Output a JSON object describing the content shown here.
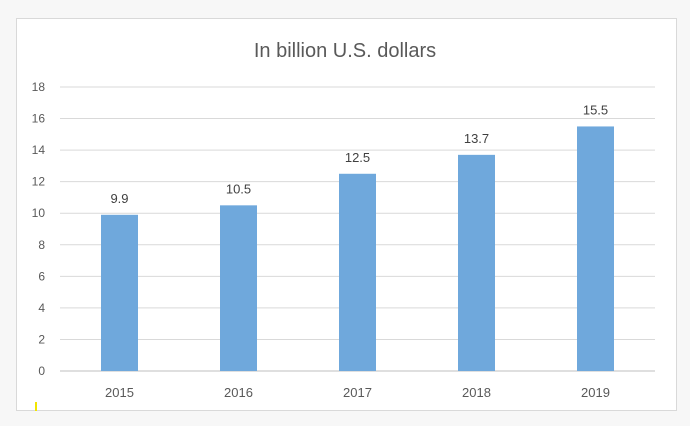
{
  "chart_data": {
    "type": "bar",
    "title": "In billion U.S. dollars",
    "categories": [
      "2015",
      "2016",
      "2017",
      "2018",
      "2019"
    ],
    "values": [
      9.9,
      10.5,
      12.5,
      13.7,
      15.5
    ],
    "value_labels": [
      "9.9",
      "10.5",
      "12.5",
      "13.7",
      "15.5"
    ],
    "ylim": [
      0,
      18
    ],
    "yticks": [
      "0",
      "2",
      "4",
      "6",
      "8",
      "10",
      "12",
      "14",
      "16",
      "18"
    ],
    "xlabel": "",
    "ylabel": "",
    "grid": true,
    "legend": "none",
    "bar_color": "#6fa8dc"
  }
}
